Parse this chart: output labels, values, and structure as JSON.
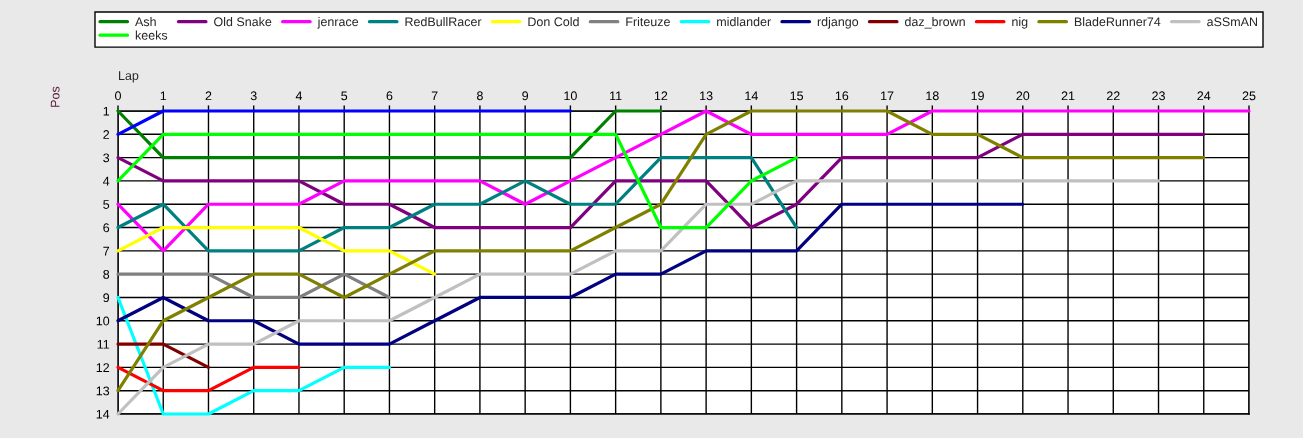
{
  "chart_data": {
    "type": "line",
    "xlabel": "Lap",
    "ylabel": "Pos",
    "xlim": [
      0,
      25
    ],
    "xticks": [
      0,
      1,
      2,
      3,
      4,
      5,
      6,
      7,
      8,
      9,
      10,
      11,
      12,
      13,
      14,
      15,
      16,
      17,
      18,
      19,
      20,
      21,
      22,
      23,
      24,
      25
    ],
    "ylim": [
      14,
      1
    ],
    "yticks": [
      1,
      2,
      3,
      4,
      5,
      6,
      7,
      8,
      9,
      10,
      11,
      12,
      13,
      14
    ],
    "grid": true,
    "legend": "top",
    "line_style": "solid",
    "series": [
      {
        "name": "Ash",
        "color": "#008000",
        "x": [
          0,
          1,
          2,
          3,
          4,
          5,
          6,
          7,
          8,
          9,
          10,
          11,
          12
        ],
        "values": [
          1,
          3,
          3,
          3,
          3,
          3,
          3,
          3,
          3,
          3,
          3,
          1,
          1
        ]
      },
      {
        "name": "Old Snake",
        "color": "#800080",
        "x": [
          0,
          1,
          2,
          3,
          4,
          5,
          6,
          7,
          8,
          9,
          10,
          11,
          12,
          13,
          14,
          15,
          16,
          17,
          18,
          19,
          20,
          21,
          22,
          23,
          24
        ],
        "values": [
          3,
          4,
          4,
          4,
          4,
          5,
          5,
          6,
          6,
          6,
          6,
          4,
          4,
          4,
          6,
          5,
          3,
          3,
          3,
          3,
          2,
          2,
          2,
          2,
          2
        ]
      },
      {
        "name": "jenrace",
        "color": "#ff00ff",
        "x": [
          0,
          1,
          2,
          3,
          4,
          5,
          6,
          7,
          8,
          9,
          10,
          11,
          12,
          13,
          14,
          15,
          16,
          17,
          18,
          19,
          20,
          21,
          22,
          23,
          24,
          25
        ],
        "values": [
          5,
          7,
          5,
          5,
          5,
          4,
          4,
          4,
          4,
          5,
          4,
          3,
          2,
          1,
          2,
          2,
          2,
          2,
          1,
          1,
          1,
          1,
          1,
          1,
          1,
          1
        ]
      },
      {
        "name": "RedBullRacer",
        "color": "#008080",
        "x": [
          0,
          1,
          2,
          3,
          4,
          5,
          6,
          7,
          8,
          9,
          10,
          11,
          12,
          13,
          14,
          15
        ],
        "values": [
          6,
          5,
          7,
          7,
          7,
          6,
          6,
          5,
          5,
          4,
          5,
          5,
          3,
          3,
          3,
          6
        ]
      },
      {
        "name": "Don Cold",
        "color": "#ffff00",
        "x": [
          0,
          1,
          2,
          3,
          4,
          5,
          6,
          7
        ],
        "values": [
          7,
          6,
          6,
          6,
          6,
          7,
          7,
          8
        ]
      },
      {
        "name": "Friteuze",
        "color": "#808080",
        "x": [
          0,
          1,
          2,
          3,
          4,
          5,
          6
        ],
        "values": [
          8,
          8,
          8,
          9,
          9,
          8,
          9
        ]
      },
      {
        "name": "midlander",
        "color": "#00ffff",
        "x": [
          0,
          1,
          2,
          3,
          4,
          5,
          6
        ],
        "values": [
          9,
          14,
          14,
          13,
          13,
          12,
          12
        ]
      },
      {
        "name": "rdjango",
        "color": "#000080",
        "x": [
          0,
          1,
          2,
          3,
          4,
          5,
          6,
          7,
          8,
          9,
          10,
          11,
          12,
          13,
          14,
          15,
          16,
          17,
          18,
          19,
          20
        ],
        "values": [
          10,
          9,
          10,
          10,
          11,
          11,
          11,
          10,
          9,
          9,
          9,
          8,
          8,
          7,
          7,
          7,
          5,
          5,
          5,
          5,
          5
        ]
      },
      {
        "name": "daz_brown",
        "color": "#800000",
        "x": [
          0,
          1,
          2
        ],
        "values": [
          11,
          11,
          12
        ]
      },
      {
        "name": "nig",
        "color": "#ff0000",
        "x": [
          0,
          1,
          2,
          3,
          4
        ],
        "values": [
          12,
          13,
          13,
          12,
          12
        ]
      },
      {
        "name": "BladeRunner74",
        "color": "#808000",
        "x": [
          0,
          1,
          2,
          3,
          4,
          5,
          6,
          7,
          8,
          9,
          10,
          11,
          12,
          13,
          14,
          15,
          16,
          17,
          18,
          19,
          20,
          21,
          22,
          23,
          24
        ],
        "values": [
          13,
          10,
          9,
          8,
          8,
          9,
          8,
          7,
          7,
          7,
          7,
          6,
          5,
          2,
          1,
          1,
          1,
          1,
          2,
          2,
          3,
          3,
          3,
          3,
          3
        ]
      },
      {
        "name": "aSSmAN",
        "color": "#c0c0c0",
        "x": [
          0,
          1,
          2,
          3,
          4,
          5,
          6,
          7,
          8,
          9,
          10,
          11,
          12,
          13,
          14,
          15,
          16,
          17,
          18,
          19,
          20,
          21,
          22,
          23
        ],
        "values": [
          14,
          12,
          11,
          11,
          10,
          10,
          10,
          9,
          8,
          8,
          8,
          7,
          7,
          5,
          5,
          4,
          4,
          4,
          4,
          4,
          4,
          4,
          4,
          4
        ]
      },
      {
        "color": "#0000ff",
        "x": [
          0,
          1,
          2,
          3,
          4,
          5,
          6,
          7,
          8,
          9,
          10
        ],
        "values": [
          2,
          1,
          1,
          1,
          1,
          1,
          1,
          1,
          1,
          1,
          1
        ]
      },
      {
        "name": "keeks",
        "color": "#00ff00",
        "x": [
          0,
          1,
          2,
          3,
          4,
          5,
          6,
          7,
          8,
          9,
          10,
          11,
          12,
          13,
          14,
          15
        ],
        "values": [
          4,
          2,
          2,
          2,
          2,
          2,
          2,
          2,
          2,
          2,
          2,
          2,
          6,
          6,
          4,
          3
        ]
      }
    ]
  }
}
